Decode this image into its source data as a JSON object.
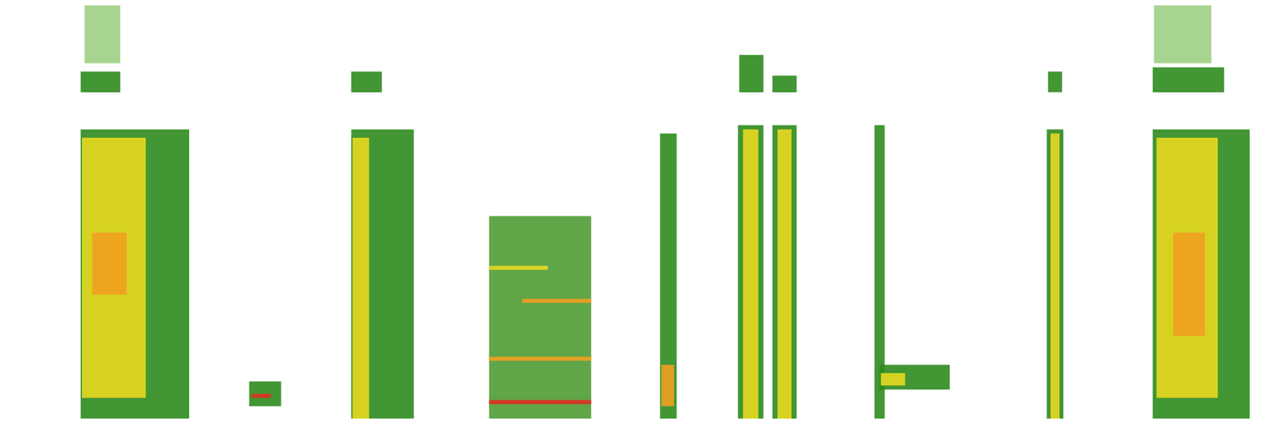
{
  "chart_data": {
    "type": "spectrogram",
    "xlim": [
      0,
      100
    ],
    "ylim": [
      0,
      100
    ],
    "tick_labels": false,
    "grid": false,
    "areas": [
      {
        "x": [
          5.9,
          14.4
        ],
        "y": [
          0,
          70
        ],
        "color": "#2e8b1e"
      },
      {
        "x": [
          6.0,
          11.0
        ],
        "y": [
          5,
          68
        ],
        "color": "#e8d820"
      },
      {
        "x": [
          6.8,
          9.5
        ],
        "y": [
          30,
          45
        ],
        "color": "#f0a020"
      },
      {
        "x": [
          5.9,
          9.0
        ],
        "y": [
          79,
          84
        ],
        "color": "#2e8b1e"
      },
      {
        "x": [
          6.2,
          9.0
        ],
        "y": [
          86,
          100
        ],
        "color": "#9fcf85"
      },
      {
        "x": [
          19.1,
          21.6
        ],
        "y": [
          3,
          9
        ],
        "color": "#2e8b1e"
      },
      {
        "x": [
          19.3,
          20.8
        ],
        "y": [
          5,
          6
        ],
        "color": "#e03020"
      },
      {
        "x": [
          27.1,
          32.0
        ],
        "y": [
          0,
          70
        ],
        "color": "#2e8b1e"
      },
      {
        "x": [
          27.2,
          28.5
        ],
        "y": [
          0,
          68
        ],
        "color": "#e8d820"
      },
      {
        "x": [
          27.1,
          29.5
        ],
        "y": [
          79,
          84
        ],
        "color": "#2e8b1e"
      },
      {
        "x": [
          37.9,
          45.9
        ],
        "y": [
          0,
          49
        ],
        "color": "#4f9c35"
      },
      {
        "x": [
          37.9,
          45.9
        ],
        "y": [
          3.5,
          4.5
        ],
        "color": "#e03020"
      },
      {
        "x": [
          37.9,
          45.9
        ],
        "y": [
          14,
          15
        ],
        "color": "#f0a020"
      },
      {
        "x": [
          40.5,
          45.9
        ],
        "y": [
          28,
          29
        ],
        "color": "#f0a020"
      },
      {
        "x": [
          37.9,
          42.5
        ],
        "y": [
          36,
          37
        ],
        "color": "#e8d820"
      },
      {
        "x": [
          51.3,
          52.6
        ],
        "y": [
          0,
          69
        ],
        "color": "#2e8b1e"
      },
      {
        "x": [
          51.4,
          52.4
        ],
        "y": [
          3,
          13
        ],
        "color": "#f0a020"
      },
      {
        "x": [
          57.4,
          59.4
        ],
        "y": [
          0,
          71
        ],
        "color": "#2e8b1e"
      },
      {
        "x": [
          60.1,
          62.0
        ],
        "y": [
          0,
          71
        ],
        "color": "#2e8b1e"
      },
      {
        "x": [
          57.8,
          59.0
        ],
        "y": [
          0,
          70
        ],
        "color": "#e8d820"
      },
      {
        "x": [
          60.5,
          61.6
        ],
        "y": [
          0,
          70
        ],
        "color": "#e8d820"
      },
      {
        "x": [
          57.5,
          59.4
        ],
        "y": [
          79,
          88
        ],
        "color": "#2e8b1e"
      },
      {
        "x": [
          60.1,
          62.0
        ],
        "y": [
          79,
          83
        ],
        "color": "#2e8b1e"
      },
      {
        "x": [
          68.1,
          68.9
        ],
        "y": [
          0,
          71
        ],
        "color": "#2e8b1e"
      },
      {
        "x": [
          68.5,
          74.0
        ],
        "y": [
          7,
          13
        ],
        "color": "#2e8b1e"
      },
      {
        "x": [
          68.6,
          70.5
        ],
        "y": [
          8,
          11
        ],
        "color": "#e8d820"
      },
      {
        "x": [
          81.6,
          82.9
        ],
        "y": [
          0,
          70
        ],
        "color": "#2e8b1e"
      },
      {
        "x": [
          81.9,
          82.6
        ],
        "y": [
          0,
          69
        ],
        "color": "#e8d820"
      },
      {
        "x": [
          81.7,
          82.8
        ],
        "y": [
          79,
          84
        ],
        "color": "#2e8b1e"
      },
      {
        "x": [
          89.9,
          97.5
        ],
        "y": [
          0,
          70
        ],
        "color": "#2e8b1e"
      },
      {
        "x": [
          90.2,
          95.0
        ],
        "y": [
          5,
          68
        ],
        "color": "#e8d820"
      },
      {
        "x": [
          91.5,
          94.0
        ],
        "y": [
          20,
          45
        ],
        "color": "#f0a020"
      },
      {
        "x": [
          89.9,
          95.5
        ],
        "y": [
          79,
          85
        ],
        "color": "#2e8b1e"
      },
      {
        "x": [
          90.0,
          94.5
        ],
        "y": [
          86,
          100
        ],
        "color": "#9fcf85"
      }
    ]
  }
}
